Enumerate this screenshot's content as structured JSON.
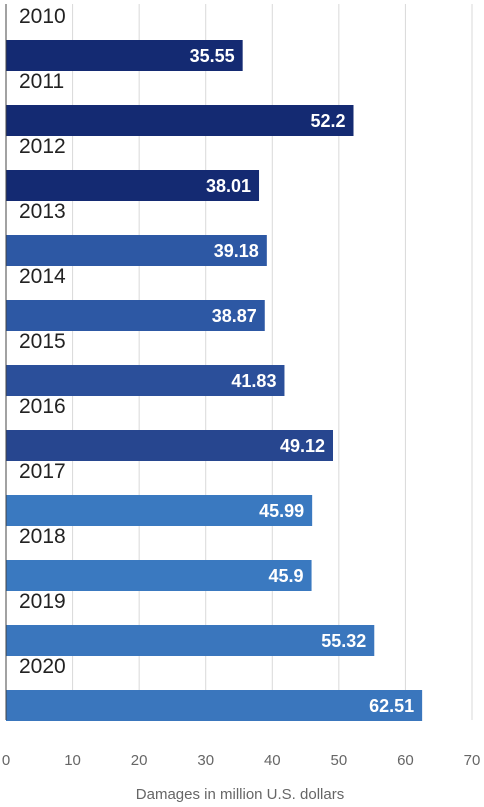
{
  "chart_data": {
    "type": "bar",
    "orientation": "horizontal",
    "categories": [
      "2010",
      "2011",
      "2012",
      "2013",
      "2014",
      "2015",
      "2016",
      "2017",
      "2018",
      "2019",
      "2020"
    ],
    "values": [
      35.55,
      52.2,
      38.01,
      39.18,
      38.87,
      41.83,
      49.12,
      45.99,
      45.9,
      55.32,
      62.51
    ],
    "value_labels": [
      "35.55",
      "52.2",
      "38.01",
      "39.18",
      "38.87",
      "41.83",
      "49.12",
      "45.99",
      "45.9",
      "55.32",
      "62.51"
    ],
    "bar_colors": [
      "#142a72",
      "#142a72",
      "#142a72",
      "#2d58a4",
      "#2d58a4",
      "#2b4f9a",
      "#27468f",
      "#3a79c0",
      "#3a79c0",
      "#3a76bd",
      "#3a76bd"
    ],
    "xlabel": "Damages in million U.S. dollars",
    "ylabel": "",
    "xlim": [
      0,
      70
    ],
    "xticks": [
      0,
      10,
      20,
      30,
      40,
      50,
      60,
      70
    ],
    "grid": true,
    "legend": "none"
  }
}
